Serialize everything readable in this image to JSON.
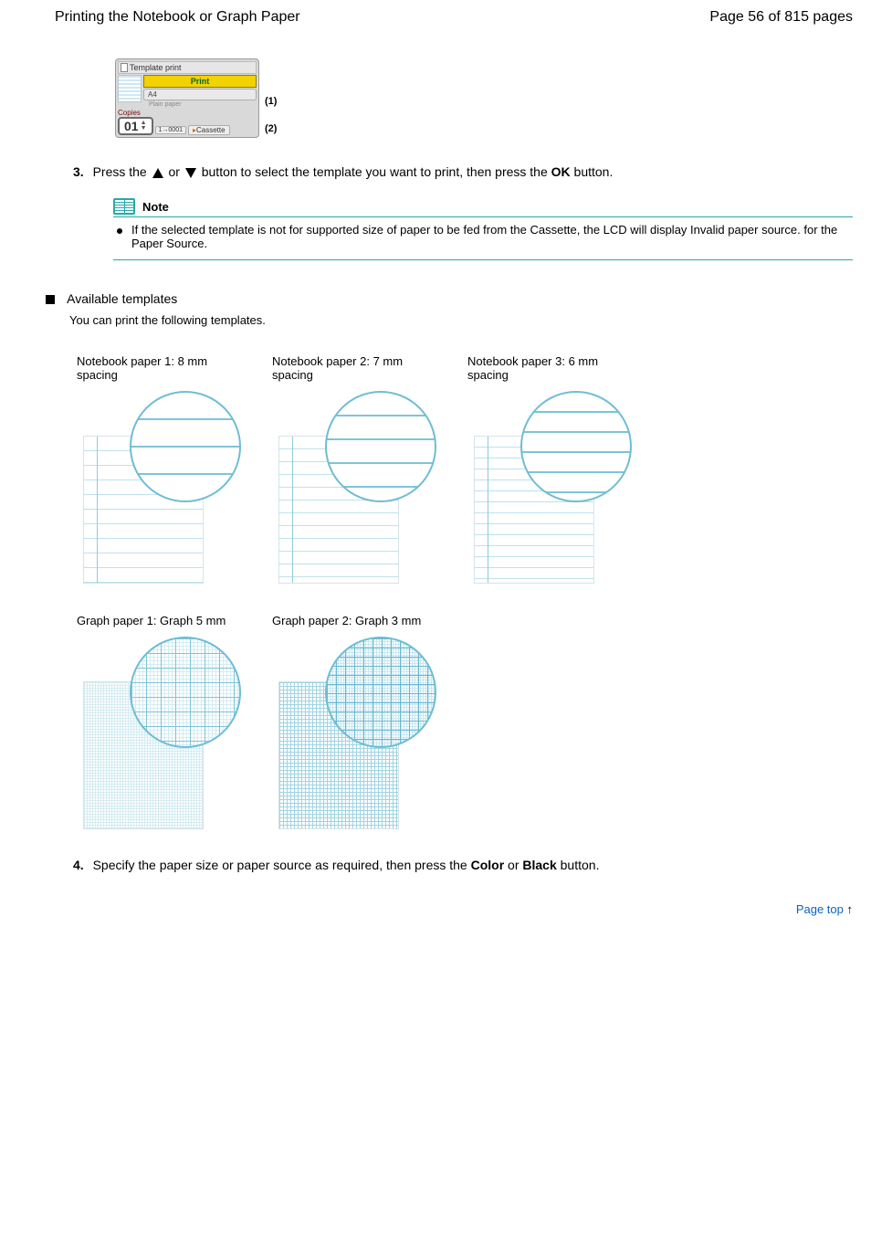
{
  "header": {
    "title": "Printing the Notebook or Graph Paper",
    "page_label": "Page 56 of 815 pages"
  },
  "lcd": {
    "window_title": "Template print",
    "print_btn": "Print",
    "size_field": "A4",
    "size_sub": "Plain paper",
    "copies_label": "Copies",
    "copies_value": "01",
    "src_a": "1→0001",
    "src_b": "Cassette",
    "callout1": "(1)",
    "callout2": "(2)"
  },
  "steps": {
    "s3_num": "3.",
    "s3_text_a": "Press the ",
    "s3_text_b": " or ",
    "s3_text_c": " button to select the template you want to print, then press the ",
    "s3_ok": "OK",
    "s3_text_d": " button."
  },
  "note": {
    "title": "Note",
    "body": "If the selected template is not for supported size of paper to be fed from the Cassette, the LCD will display ",
    "err": "Invalid paper source.",
    "body2": " for the Paper Source."
  },
  "templates_head": "Available templates",
  "templates_desc": "You can print the following templates.",
  "templates": [
    {
      "title": "Notebook paper 1: 8 mm spacing",
      "page_cls": "rule-8",
      "mag_cls": "mag-8",
      "margin": true
    },
    {
      "title": "Notebook paper 2: 7 mm spacing",
      "page_cls": "rule-7",
      "mag_cls": "mag-7",
      "margin": true
    },
    {
      "title": "Notebook paper 3: 6 mm spacing",
      "page_cls": "rule-6",
      "mag_cls": "mag-6",
      "margin": true
    },
    {
      "title": "Graph paper 1: Graph 5 mm",
      "page_cls": "graph1",
      "mag_cls": "mag-g1",
      "margin": false
    },
    {
      "title": "Graph paper 2: Graph 3 mm",
      "page_cls": "graph2",
      "mag_cls": "mag-g2",
      "margin": false
    }
  ],
  "step4": {
    "num": "4.",
    "text_a": "Specify the paper size or paper source as required, then press the ",
    "color": "Color",
    "text_b": " or ",
    "black": "Black",
    "text_c": " button."
  },
  "toplink": "Page top"
}
